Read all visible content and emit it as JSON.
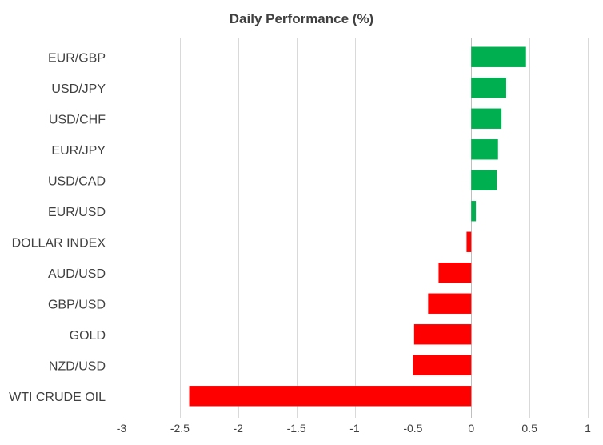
{
  "chart_data": {
    "type": "bar",
    "orientation": "horizontal",
    "title": "Daily Performance (%)",
    "categories": [
      "EUR/GBP",
      "USD/JPY",
      "USD/CHF",
      "EUR/JPY",
      "USD/CAD",
      "EUR/USD",
      "DOLLAR INDEX",
      "AUD/USD",
      "GBP/USD",
      "GOLD",
      "NZD/USD",
      "WTI CRUDE OIL"
    ],
    "values": [
      0.47,
      0.3,
      0.26,
      0.23,
      0.22,
      0.04,
      -0.04,
      -0.28,
      -0.37,
      -0.49,
      -0.5,
      -2.42
    ],
    "xlim": [
      -3,
      1
    ],
    "xticks": [
      "-3",
      "-2.5",
      "-2",
      "-1.5",
      "-1",
      "-0.5",
      "0",
      "0.5",
      "1"
    ],
    "xlabel": "",
    "ylabel": "",
    "grid": true,
    "colors": {
      "positive": "#00b050",
      "negative": "#ff0000"
    }
  }
}
